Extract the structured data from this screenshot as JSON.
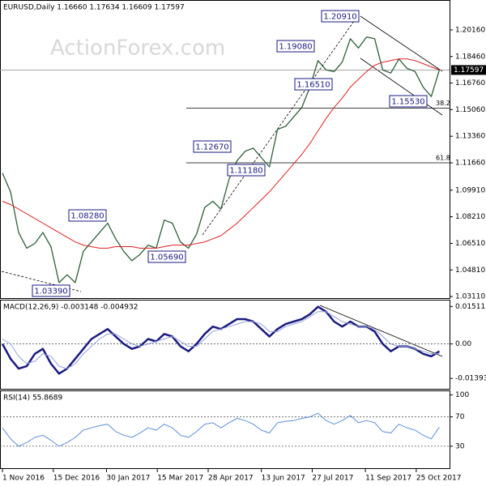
{
  "chart_data": [
    {
      "type": "line",
      "title": "EURUSD,Daily  1.16660 1.17634 1.16609 1.17597",
      "watermark": "ActionForex.com",
      "x": [
        "2016-11-01",
        "2016-11-08",
        "2016-11-15",
        "2016-11-22",
        "2016-11-29",
        "2016-12-06",
        "2016-12-13",
        "2016-12-20",
        "2016-12-27",
        "2017-01-03",
        "2017-01-10",
        "2017-01-17",
        "2017-01-24",
        "2017-01-31",
        "2017-02-07",
        "2017-02-14",
        "2017-02-21",
        "2017-02-28",
        "2017-03-07",
        "2017-03-14",
        "2017-03-21",
        "2017-03-28",
        "2017-04-04",
        "2017-04-11",
        "2017-04-18",
        "2017-04-25",
        "2017-05-02",
        "2017-05-09",
        "2017-05-16",
        "2017-05-23",
        "2017-05-30",
        "2017-06-06",
        "2017-06-13",
        "2017-06-20",
        "2017-06-27",
        "2017-07-04",
        "2017-07-11",
        "2017-07-18",
        "2017-07-25",
        "2017-08-01",
        "2017-08-08",
        "2017-08-15",
        "2017-08-22",
        "2017-08-29",
        "2017-09-05",
        "2017-09-12",
        "2017-09-19",
        "2017-09-26",
        "2017-10-03",
        "2017-10-10",
        "2017-10-17",
        "2017-10-24",
        "2017-10-31",
        "2017-11-07",
        "2017-11-14"
      ],
      "series": [
        {
          "color": "#2f5f3a",
          "width": 1.3,
          "values": [
            1.11,
            1.098,
            1.072,
            1.062,
            1.065,
            1.072,
            1.063,
            1.04,
            1.045,
            1.04,
            1.06,
            1.066,
            1.072,
            1.078,
            1.068,
            1.06,
            1.054,
            1.058,
            1.064,
            1.062,
            1.08,
            1.078,
            1.066,
            1.062,
            1.071,
            1.088,
            1.092,
            1.087,
            1.106,
            1.118,
            1.124,
            1.126,
            1.12,
            1.114,
            1.138,
            1.14,
            1.146,
            1.152,
            1.165,
            1.182,
            1.176,
            1.175,
            1.181,
            1.196,
            1.19,
            1.197,
            1.196,
            1.176,
            1.174,
            1.183,
            1.177,
            1.175,
            1.165,
            1.159,
            1.176
          ]
        },
        {
          "color": "#e02020",
          "width": 1,
          "values": [
            1.092,
            1.09,
            1.087,
            1.084,
            1.081,
            1.078,
            1.075,
            1.072,
            1.069,
            1.066,
            1.064,
            1.063,
            1.062,
            1.062,
            1.063,
            1.063,
            1.063,
            1.062,
            1.062,
            1.062,
            1.063,
            1.064,
            1.064,
            1.064,
            1.065,
            1.066,
            1.068,
            1.07,
            1.074,
            1.078,
            1.083,
            1.088,
            1.093,
            1.098,
            1.104,
            1.11,
            1.116,
            1.122,
            1.129,
            1.137,
            1.145,
            1.152,
            1.158,
            1.165,
            1.17,
            1.175,
            1.179,
            1.181,
            1.182,
            1.183,
            1.183,
            1.182,
            1.18,
            1.178,
            1.176
          ]
        }
      ],
      "ylim": [
        1.0301,
        1.2197
      ],
      "yticks": [
        {
          "value": 1.2016,
          "label": "1.20160"
        },
        {
          "value": 1.1846,
          "label": "1.18460"
        },
        {
          "value": 1.1676,
          "label": "1.16760"
        },
        {
          "value": 1.1506,
          "label": "1.15060"
        },
        {
          "value": 1.1336,
          "label": "1.13360"
        },
        {
          "value": 1.1166,
          "label": "1.11660"
        },
        {
          "value": 1.0991,
          "label": "1.09910"
        },
        {
          "value": 1.0821,
          "label": "1.08210"
        },
        {
          "value": 1.0651,
          "label": "1.06510"
        },
        {
          "value": 1.0481,
          "label": "1.04810"
        },
        {
          "value": 1.0311,
          "label": "1.03110"
        }
      ],
      "last_price": 1.17597,
      "levels": [
        {
          "value": 1.1515,
          "label": "38.2"
        },
        {
          "value": 1.1166,
          "label": "61.8"
        }
      ],
      "annotations": [
        "1.20910",
        "1.19080",
        "1.16510",
        "1.15530",
        "1.12670",
        "1.11180",
        "1.08280",
        "1.05690",
        "1.03390"
      ]
    },
    {
      "type": "line",
      "title": "MACD(12,26,9) -0.003148 -0.004932",
      "series": [
        {
          "color": "#1a1a80",
          "width": 2.5,
          "values": [
            0.0,
            -0.006,
            -0.01,
            -0.009,
            -0.004,
            -0.002,
            -0.008,
            -0.012,
            -0.01,
            -0.006,
            -0.002,
            0.002,
            0.004,
            0.006,
            0.003,
            0.0,
            -0.002,
            -0.001,
            0.002,
            0.001,
            0.004,
            0.003,
            -0.001,
            -0.003,
            0.0,
            0.004,
            0.007,
            0.006,
            0.008,
            0.01,
            0.01,
            0.009,
            0.006,
            0.003,
            0.006,
            0.008,
            0.009,
            0.01,
            0.012,
            0.015,
            0.013,
            0.009,
            0.007,
            0.009,
            0.007,
            0.007,
            0.005,
            0.0,
            -0.003,
            -0.001,
            -0.001,
            -0.002,
            -0.004,
            -0.005,
            -0.003
          ]
        },
        {
          "color": "#8fa3d6",
          "width": 1,
          "values": [
            0.002,
            0.0,
            -0.005,
            -0.008,
            -0.007,
            -0.004,
            -0.005,
            -0.009,
            -0.01,
            -0.008,
            -0.004,
            -0.001,
            0.002,
            0.004,
            0.004,
            0.002,
            0.0,
            -0.001,
            0.0,
            0.001,
            0.002,
            0.003,
            0.001,
            -0.001,
            -0.001,
            0.002,
            0.005,
            0.006,
            0.007,
            0.008,
            0.009,
            0.009,
            0.008,
            0.005,
            0.005,
            0.007,
            0.008,
            0.009,
            0.011,
            0.013,
            0.013,
            0.011,
            0.009,
            0.008,
            0.007,
            0.007,
            0.006,
            0.003,
            0.0,
            -0.001,
            -0.001,
            -0.002,
            -0.003,
            -0.004,
            -0.004
          ]
        }
      ],
      "ylim": [
        -0.01813,
        0.01752
      ],
      "yticks": [
        0.01511,
        {
          "value": 0,
          "label": "0.00"
        },
        -0.013938
      ],
      "guides": [
        0
      ]
    },
    {
      "type": "line",
      "title": "RSI(14) 55.8689",
      "series": [
        {
          "color": "#5b8fd8",
          "width": 1,
          "values": [
            55,
            40,
            30,
            35,
            42,
            45,
            38,
            30,
            35,
            42,
            52,
            55,
            58,
            60,
            50,
            45,
            42,
            48,
            55,
            52,
            60,
            55,
            45,
            42,
            50,
            60,
            62,
            55,
            62,
            68,
            65,
            60,
            52,
            48,
            62,
            64,
            65,
            68,
            70,
            75,
            65,
            60,
            65,
            72,
            62,
            65,
            62,
            50,
            48,
            60,
            55,
            52,
            45,
            40,
            56
          ]
        }
      ],
      "ylim": [
        0,
        105
      ],
      "yticks": [
        100,
        70,
        30
      ],
      "guides": [
        70,
        30
      ],
      "xticks": [
        {
          "value": "2016-11-01",
          "label": "1 Nov 2016"
        },
        {
          "value": "2016-12-15",
          "label": "15 Dec 2016"
        },
        {
          "value": "2017-01-30",
          "label": "30 Jan 2017"
        },
        {
          "value": "2017-03-15",
          "label": "15 Mar 2017"
        },
        {
          "value": "2017-04-28",
          "label": "28 Apr 2017"
        },
        {
          "value": "2017-06-13",
          "label": "13 Jun 2017"
        },
        {
          "value": "2017-07-27",
          "label": "27 Jul 2017"
        },
        {
          "value": "2017-09-11",
          "label": "11 Sep 2017"
        },
        {
          "value": "2017-10-25",
          "label": "25 Oct 2017"
        }
      ]
    }
  ]
}
